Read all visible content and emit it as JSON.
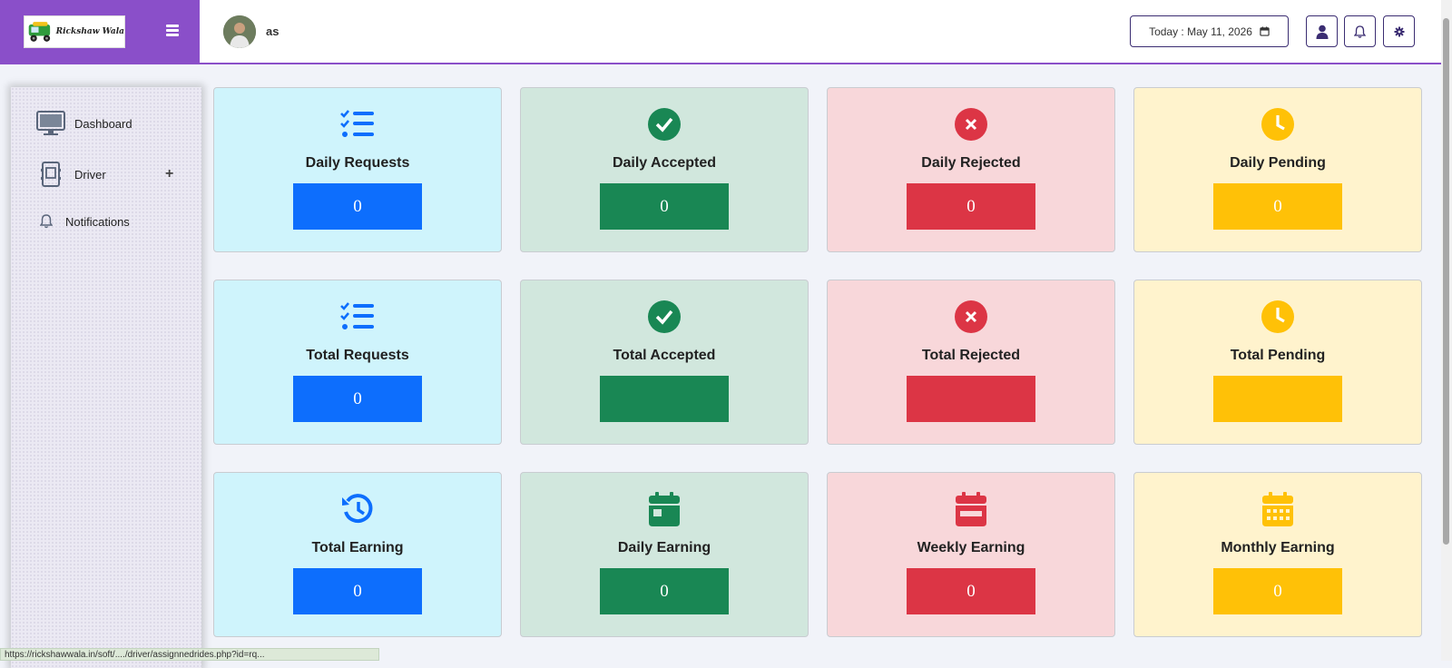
{
  "brand": {
    "logo_text": "Rickshaw Wala"
  },
  "header": {
    "username": "as",
    "date_label": "Today : May 11, 2026"
  },
  "sidebar": {
    "items": [
      {
        "label": "Dashboard",
        "icon": "monitor-icon"
      },
      {
        "label": "Driver",
        "icon": "driver-icon",
        "expand": "+"
      },
      {
        "label": "Notifications",
        "icon": "bell-icon"
      }
    ]
  },
  "cards": {
    "daily_requests": {
      "title": "Daily Requests",
      "value": "0"
    },
    "daily_accepted": {
      "title": "Daily Accepted",
      "value": "0"
    },
    "daily_rejected": {
      "title": "Daily Rejected",
      "value": "0"
    },
    "daily_pending": {
      "title": "Daily Pending",
      "value": "0"
    },
    "total_requests": {
      "title": "Total Requests",
      "value": "0"
    },
    "total_accepted": {
      "title": "Total Accepted",
      "value": ""
    },
    "total_rejected": {
      "title": "Total Rejected",
      "value": ""
    },
    "total_pending": {
      "title": "Total Pending",
      "value": ""
    },
    "total_earning": {
      "title": "Total Earning",
      "value": "0"
    },
    "daily_earning": {
      "title": "Daily Earning",
      "value": "0"
    },
    "weekly_earning": {
      "title": "Weekly Earning",
      "value": "0"
    },
    "monthly_earning": {
      "title": "Monthly Earning",
      "value": "0"
    }
  },
  "colors": {
    "brand": "#8a4fc9",
    "blue": "#0d6efd",
    "green": "#198754",
    "red": "#dc3545",
    "yellow": "#ffc107"
  },
  "status_bar": {
    "url": "https://rickshawwala.in/soft/..../driver/assignnedrides.php?id=rq..."
  }
}
